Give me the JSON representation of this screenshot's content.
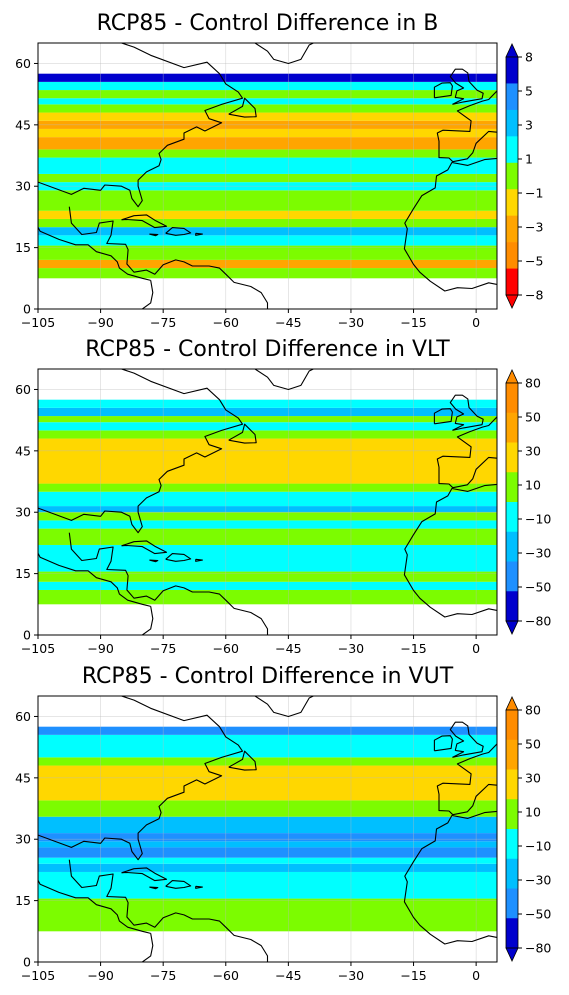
{
  "panels": [
    {
      "title": "RCP85 - Control Difference in B",
      "colorbar": {
        "tick_labels": [
          "8",
          "5",
          "3",
          "1",
          "−1",
          "−3",
          "−5",
          "−8"
        ],
        "colors": [
          "#0000cd",
          "#1e90ff",
          "#00bfff",
          "#00ffff",
          "#7cfc00",
          "#ffd700",
          "#ffa500",
          "#ff8c00",
          "#ff0000"
        ],
        "extend_top_color": "#0000cd",
        "extend_bottom_color": "#ff0000"
      },
      "bands": [
        {
          "lat": [
            7.5,
            10
          ],
          "color": "#7cfc00"
        },
        {
          "lat": [
            10,
            12
          ],
          "color": "#ffa500"
        },
        {
          "lat": [
            12,
            15.5
          ],
          "color": "#7cfc00"
        },
        {
          "lat": [
            15.5,
            18
          ],
          "color": "#00ffff"
        },
        {
          "lat": [
            18,
            20
          ],
          "color": "#00bfff"
        },
        {
          "lat": [
            20,
            22
          ],
          "color": "#7cfc00"
        },
        {
          "lat": [
            22,
            24
          ],
          "color": "#ffd700"
        },
        {
          "lat": [
            24,
            29
          ],
          "color": "#7cfc00"
        },
        {
          "lat": [
            29,
            31
          ],
          "color": "#00ffff"
        },
        {
          "lat": [
            31,
            33
          ],
          "color": "#7cfc00"
        },
        {
          "lat": [
            33,
            37
          ],
          "color": "#00ffff"
        },
        {
          "lat": [
            37,
            39
          ],
          "color": "#7cfc00"
        },
        {
          "lat": [
            39,
            42
          ],
          "color": "#ffa500"
        },
        {
          "lat": [
            42,
            44
          ],
          "color": "#ffd700"
        },
        {
          "lat": [
            44,
            46
          ],
          "color": "#ffa500"
        },
        {
          "lat": [
            46,
            48
          ],
          "color": "#ffd700"
        },
        {
          "lat": [
            48,
            50
          ],
          "color": "#7cfc00"
        },
        {
          "lat": [
            50,
            51.5
          ],
          "color": "#00ffff"
        },
        {
          "lat": [
            51.5,
            53.5
          ],
          "color": "#7cfc00"
        },
        {
          "lat": [
            53.5,
            55.5
          ],
          "color": "#00ffff"
        },
        {
          "lat": [
            55.5,
            57.5
          ],
          "color": "#0000cd"
        }
      ]
    },
    {
      "title": "RCP85 - Control Difference in VLT",
      "colorbar": {
        "tick_labels": [
          "80",
          "50",
          "30",
          "10",
          "−10",
          "−30",
          "−50",
          "−80"
        ],
        "colors": [
          "#ff8c00",
          "#ffa500",
          "#ffd700",
          "#7cfc00",
          "#00ffff",
          "#00bfff",
          "#1e90ff",
          "#0000cd"
        ],
        "extend_top_color": "#ff8c00",
        "extend_bottom_color": "#0000cd"
      },
      "bands": [
        {
          "lat": [
            7.5,
            11
          ],
          "color": "#7cfc00"
        },
        {
          "lat": [
            11,
            13
          ],
          "color": "#00ffff"
        },
        {
          "lat": [
            13,
            15.5
          ],
          "color": "#7cfc00"
        },
        {
          "lat": [
            15.5,
            22
          ],
          "color": "#00ffff"
        },
        {
          "lat": [
            22,
            26
          ],
          "color": "#7cfc00"
        },
        {
          "lat": [
            26,
            28
          ],
          "color": "#00ffff"
        },
        {
          "lat": [
            28,
            30
          ],
          "color": "#7cfc00"
        },
        {
          "lat": [
            30,
            31.5
          ],
          "color": "#00bfff"
        },
        {
          "lat": [
            31.5,
            35
          ],
          "color": "#00ffff"
        },
        {
          "lat": [
            35,
            37
          ],
          "color": "#7cfc00"
        },
        {
          "lat": [
            37,
            48
          ],
          "color": "#ffd700"
        },
        {
          "lat": [
            48,
            50
          ],
          "color": "#7cfc00"
        },
        {
          "lat": [
            50,
            52
          ],
          "color": "#00ffff"
        },
        {
          "lat": [
            52,
            53.5
          ],
          "color": "#7cfc00"
        },
        {
          "lat": [
            53.5,
            55.5
          ],
          "color": "#00bfff"
        },
        {
          "lat": [
            55.5,
            57.5
          ],
          "color": "#00ffff"
        }
      ]
    },
    {
      "title": "RCP85 - Control Difference in VUT",
      "colorbar": {
        "tick_labels": [
          "80",
          "50",
          "30",
          "10",
          "−10",
          "−30",
          "−50",
          "−80"
        ],
        "colors": [
          "#ff8c00",
          "#ffa500",
          "#ffd700",
          "#7cfc00",
          "#00ffff",
          "#00bfff",
          "#1e90ff",
          "#0000cd"
        ],
        "extend_top_color": "#ff8c00",
        "extend_bottom_color": "#0000cd"
      },
      "bands": [
        {
          "lat": [
            7.5,
            15.5
          ],
          "color": "#7cfc00"
        },
        {
          "lat": [
            15.5,
            22
          ],
          "color": "#00ffff"
        },
        {
          "lat": [
            22,
            24
          ],
          "color": "#00bfff"
        },
        {
          "lat": [
            24,
            25.5
          ],
          "color": "#00ffff"
        },
        {
          "lat": [
            25.5,
            28
          ],
          "color": "#1e90ff"
        },
        {
          "lat": [
            28,
            29.5
          ],
          "color": "#00bfff"
        },
        {
          "lat": [
            29.5,
            31.5
          ],
          "color": "#1e90ff"
        },
        {
          "lat": [
            31.5,
            35.5
          ],
          "color": "#00bfff"
        },
        {
          "lat": [
            35.5,
            39.5
          ],
          "color": "#7cfc00"
        },
        {
          "lat": [
            39.5,
            48
          ],
          "color": "#ffd700"
        },
        {
          "lat": [
            48,
            50
          ],
          "color": "#7cfc00"
        },
        {
          "lat": [
            50,
            55.5
          ],
          "color": "#00ffff"
        },
        {
          "lat": [
            55.5,
            57.5
          ],
          "color": "#1e90ff"
        }
      ]
    }
  ],
  "x_ticks": [
    {
      "value": -105,
      "label": "−105"
    },
    {
      "value": -90,
      "label": "−90"
    },
    {
      "value": -75,
      "label": "−75"
    },
    {
      "value": -60,
      "label": "−60"
    },
    {
      "value": -45,
      "label": "−45"
    },
    {
      "value": -30,
      "label": "−30"
    },
    {
      "value": -15,
      "label": "−15"
    },
    {
      "value": 0,
      "label": "0"
    }
  ],
  "y_ticks": [
    {
      "value": 0,
      "label": "0"
    },
    {
      "value": 15,
      "label": "15"
    },
    {
      "value": 30,
      "label": "30"
    },
    {
      "value": 45,
      "label": "45"
    },
    {
      "value": 60,
      "label": "60"
    }
  ],
  "map_extent": {
    "lon": [
      -105,
      5
    ],
    "lat": [
      0,
      65
    ]
  },
  "grid": true,
  "land_outline_color": "#000000"
}
